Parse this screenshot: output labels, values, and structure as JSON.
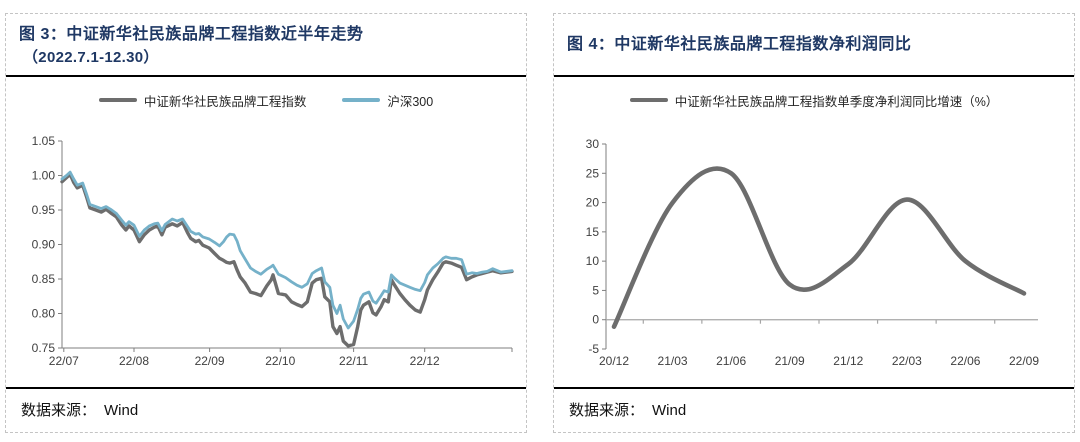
{
  "theme": {
    "title_color": "#1f3864",
    "rule_color": "#000000",
    "panel_border_color": "#c4c4c4",
    "axis_color": "#7f7f7f",
    "axis_light_color": "#a6a6a6"
  },
  "panels": [
    {
      "title": "图 3：中证新华社民族品牌工程指数近半年走势",
      "subtitle": "（2022.7.1-12.30）",
      "source_label": "数据来源：",
      "source_value": "Wind"
    },
    {
      "title": "图 4：中证新华社民族品牌工程指数净利润同比",
      "source_label": "数据来源：",
      "source_value": "Wind"
    }
  ],
  "chart_data": [
    {
      "type": "line",
      "title": "中证新华社民族品牌工程指数近半年走势（2022.7.1-12.30）",
      "grid": false,
      "legend_position": "top",
      "ylim": [
        0.75,
        1.05
      ],
      "y_ticks": [
        "0.75",
        "0.80",
        "0.85",
        "0.90",
        "0.95",
        "1.00",
        "1.05"
      ],
      "x_ticks": [
        "22/07",
        "22/08",
        "22/09",
        "22/10",
        "22/11",
        "22/12"
      ],
      "x_tick_pos": [
        0.004,
        0.16,
        0.328,
        0.485,
        0.648,
        0.806
      ],
      "x": [
        0.0,
        0.01,
        0.018,
        0.026,
        0.034,
        0.046,
        0.055,
        0.062,
        0.075,
        0.087,
        0.098,
        0.108,
        0.121,
        0.133,
        0.142,
        0.149,
        0.16,
        0.172,
        0.183,
        0.194,
        0.205,
        0.213,
        0.222,
        0.229,
        0.245,
        0.256,
        0.268,
        0.279,
        0.286,
        0.297,
        0.304,
        0.313,
        0.327,
        0.339,
        0.35,
        0.359,
        0.366,
        0.373,
        0.382,
        0.389,
        0.396,
        0.407,
        0.419,
        0.43,
        0.442,
        0.455,
        0.465,
        0.469,
        0.481,
        0.497,
        0.51,
        0.522,
        0.533,
        0.545,
        0.556,
        0.565,
        0.577,
        0.584,
        0.595,
        0.602,
        0.611,
        0.618,
        0.625,
        0.636,
        0.648,
        0.657,
        0.664,
        0.67,
        0.682,
        0.691,
        0.698,
        0.709,
        0.716,
        0.725,
        0.732,
        0.739,
        0.751,
        0.762,
        0.773,
        0.785,
        0.796,
        0.806,
        0.812,
        0.824,
        0.835,
        0.847,
        0.853,
        0.865,
        0.876,
        0.888,
        0.899,
        0.911,
        0.922,
        0.934,
        0.945,
        0.957,
        0.975,
        1.0
      ],
      "series": [
        {
          "name": "中证新华社民族品牌工程指数",
          "color": "#6d6d6d",
          "values": [
            0.991,
            0.997,
            1.002,
            0.99,
            0.982,
            0.986,
            0.968,
            0.953,
            0.95,
            0.947,
            0.951,
            0.946,
            0.94,
            0.928,
            0.921,
            0.927,
            0.921,
            0.904,
            0.914,
            0.921,
            0.925,
            0.927,
            0.914,
            0.925,
            0.93,
            0.927,
            0.932,
            0.917,
            0.909,
            0.904,
            0.906,
            0.899,
            0.895,
            0.887,
            0.88,
            0.877,
            0.874,
            0.873,
            0.875,
            0.863,
            0.853,
            0.844,
            0.831,
            0.829,
            0.826,
            0.84,
            0.849,
            0.856,
            0.829,
            0.827,
            0.817,
            0.813,
            0.81,
            0.817,
            0.844,
            0.849,
            0.851,
            0.824,
            0.817,
            0.781,
            0.771,
            0.781,
            0.76,
            0.753,
            0.755,
            0.781,
            0.805,
            0.812,
            0.817,
            0.801,
            0.798,
            0.81,
            0.82,
            0.817,
            0.849,
            0.841,
            0.829,
            0.82,
            0.812,
            0.805,
            0.802,
            0.82,
            0.834,
            0.849,
            0.86,
            0.873,
            0.875,
            0.873,
            0.87,
            0.867,
            0.849,
            0.853,
            0.856,
            0.858,
            0.86,
            0.862,
            0.859,
            0.861
          ]
        },
        {
          "name": "沪深300",
          "color": "#75b1c9",
          "values": [
            0.995,
            1.0,
            1.005,
            0.995,
            0.986,
            0.989,
            0.972,
            0.958,
            0.955,
            0.952,
            0.955,
            0.951,
            0.945,
            0.935,
            0.928,
            0.933,
            0.928,
            0.912,
            0.921,
            0.927,
            0.93,
            0.931,
            0.92,
            0.929,
            0.937,
            0.934,
            0.937,
            0.926,
            0.919,
            0.915,
            0.916,
            0.911,
            0.908,
            0.903,
            0.898,
            0.904,
            0.911,
            0.915,
            0.914,
            0.905,
            0.891,
            0.879,
            0.866,
            0.861,
            0.857,
            0.864,
            0.868,
            0.87,
            0.857,
            0.852,
            0.846,
            0.841,
            0.838,
            0.843,
            0.858,
            0.862,
            0.866,
            0.846,
            0.838,
            0.812,
            0.8,
            0.812,
            0.792,
            0.779,
            0.789,
            0.806,
            0.822,
            0.828,
            0.831,
            0.818,
            0.815,
            0.826,
            0.833,
            0.831,
            0.856,
            0.851,
            0.844,
            0.841,
            0.838,
            0.835,
            0.833,
            0.845,
            0.856,
            0.866,
            0.872,
            0.88,
            0.882,
            0.88,
            0.88,
            0.878,
            0.857,
            0.859,
            0.858,
            0.86,
            0.861,
            0.865,
            0.86,
            0.862
          ]
        }
      ]
    },
    {
      "type": "line",
      "smoothed": true,
      "title": "中证新华社民族品牌工程指数净利润同比",
      "grid": false,
      "legend_position": "top",
      "ylim": [
        -5,
        30
      ],
      "y_ticks": [
        -5,
        0,
        5,
        10,
        15,
        20,
        25,
        30
      ],
      "categories": [
        "20/12",
        "21/03",
        "21/06",
        "21/09",
        "21/12",
        "22/03",
        "22/06",
        "22/09"
      ],
      "series": [
        {
          "name": "中证新华社民族品牌工程指数单季度净利润同比增速（%）",
          "color": "#6d6d6d",
          "values": [
            -1.2,
            20,
            25,
            6,
            9.5,
            20.5,
            10,
            4.5
          ]
        }
      ]
    }
  ]
}
